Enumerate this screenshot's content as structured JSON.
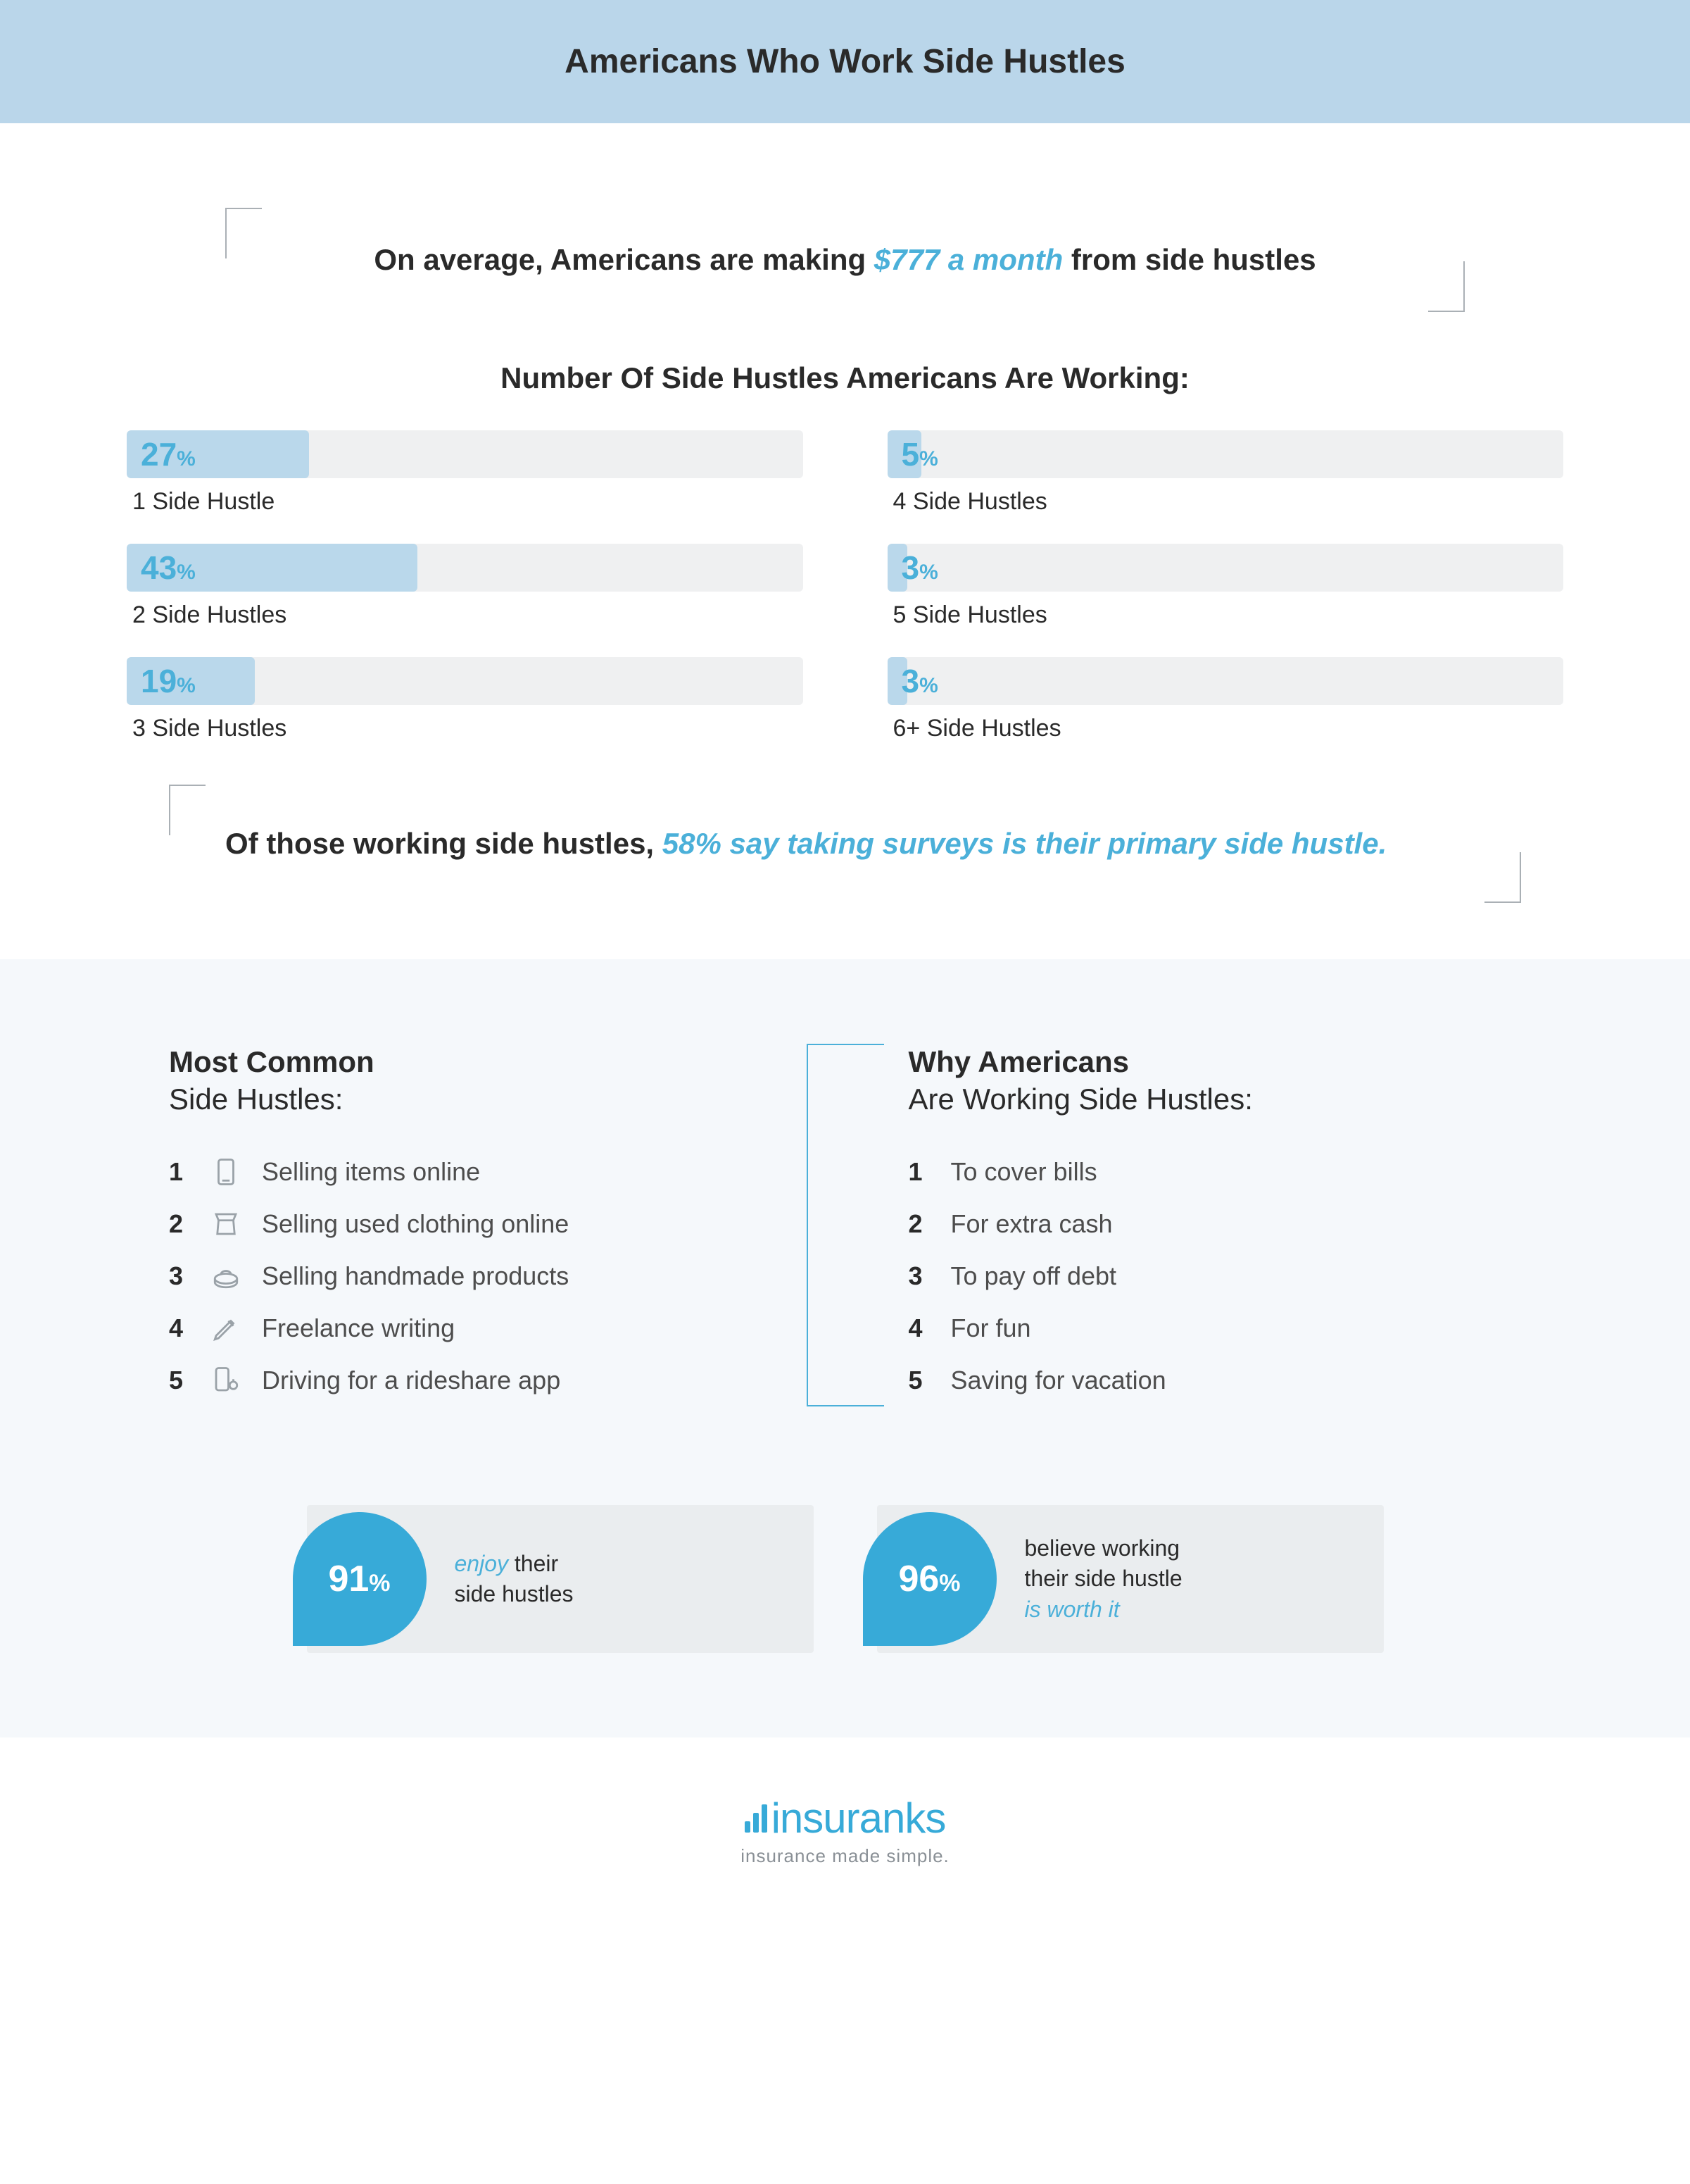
{
  "header": {
    "title": "Americans Who Work Side Hustles"
  },
  "callout1": {
    "prefix": "On average, Americans are making ",
    "accent": "$777 a month",
    "suffix": " from side hustles"
  },
  "bars": {
    "title": "Number Of Side Hustles Americans Are Working:",
    "track_bg": "#eff0f1",
    "fill_bg": "#bad8eb",
    "pct_color": "#4bb0d9",
    "items": [
      {
        "pct": 27,
        "label": "1 Side Hustle"
      },
      {
        "pct": 5,
        "label": "4 Side Hustles"
      },
      {
        "pct": 43,
        "label": "2 Side Hustles"
      },
      {
        "pct": 3,
        "label": "5 Side Hustles"
      },
      {
        "pct": 19,
        "label": "3 Side Hustles"
      },
      {
        "pct": 3,
        "label": "6+ Side Hustles"
      }
    ]
  },
  "callout2": {
    "prefix": "Of those working side hustles, ",
    "accent": "58% say taking surveys is their primary side hustle."
  },
  "common": {
    "title_bold": "Most Common",
    "title_light": "Side Hustles:",
    "items": [
      "Selling items online",
      "Selling used clothing online",
      "Selling handmade products",
      "Freelance writing",
      "Driving for a rideshare app"
    ]
  },
  "reasons": {
    "title_bold": "Why Americans",
    "title_light": "Are Working Side Hustles:",
    "items": [
      "To cover bills",
      "For extra cash",
      "To pay off debt",
      "For fun",
      "Saving for vacation"
    ]
  },
  "stats": [
    {
      "pct": 91,
      "accent": "enjoy",
      "rest_line1": " their",
      "line2": "side hustles"
    },
    {
      "pct": 96,
      "line1": "believe working",
      "line2": "their side hustle",
      "accent_line3": "is worth it"
    }
  ],
  "footer": {
    "brand": "insuranks",
    "tagline": "insurance made simple."
  },
  "colors": {
    "band": "#bad6ea",
    "accent_blue": "#4bb0d9",
    "drop_blue": "#37aad8",
    "light_panel": "#f5f8fb",
    "stat_box": "#eaedef"
  }
}
